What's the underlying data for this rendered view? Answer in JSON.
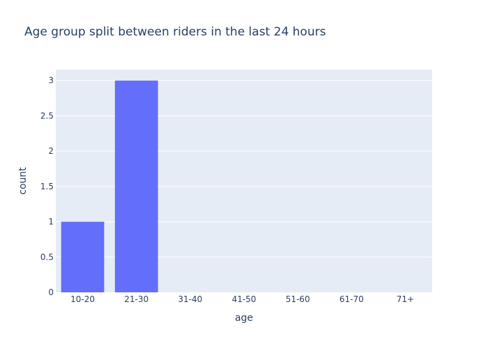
{
  "chart_data": {
    "type": "bar",
    "title": "Age group split between riders in the last 24 hours",
    "xlabel": "age",
    "ylabel": "count",
    "categories": [
      "10-20",
      "21-30",
      "31-40",
      "41-50",
      "51-60",
      "61-70",
      "71+"
    ],
    "values": [
      1,
      3,
      0,
      0,
      0,
      0,
      0
    ],
    "ylim": [
      0,
      3
    ],
    "yticks": [
      "0",
      "0.5",
      "1",
      "1.5",
      "2",
      "2.5",
      "3"
    ],
    "grid": true,
    "legend": "none",
    "colors": {
      "bar": "#636efa",
      "plot_background": "#e5ecf6",
      "gridline": "#ffffff",
      "text": "#2a3f5f"
    }
  }
}
